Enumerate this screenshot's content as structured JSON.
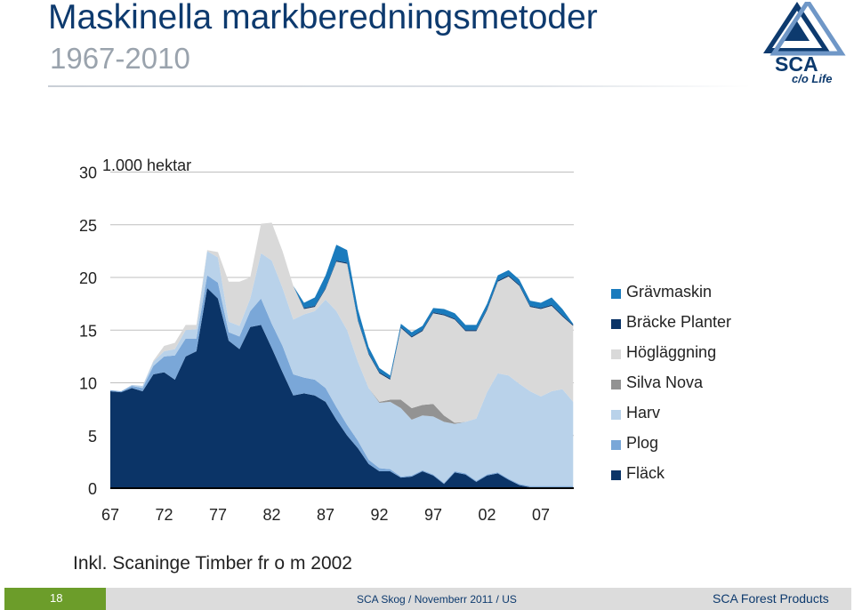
{
  "slide": {
    "title": "Maskinella markberedningsmetoder",
    "subtitle": "1967-2010",
    "logo_text": "SCA",
    "logo_tagline": "c/o Life",
    "note": "Inkl. Scaninge Timber fr o m 2002"
  },
  "footer": {
    "page_number": "18",
    "center_text": "SCA Skog / Novemberr 2011 / US",
    "right_text": "SCA Forest Products"
  },
  "colors": {
    "title": "#0d3a6e",
    "Grävmaskin": "#1a7bbd",
    "Bräcke Planter": "#0b3467",
    "Högläggning": "#d9d9d9",
    "Silva Nova": "#939393",
    "Harv": "#b9d2ea",
    "Plog": "#7aa7d8",
    "Fläck": "#0b3467",
    "footer_accent": "#6c9d2a"
  },
  "chart_data": {
    "type": "area",
    "stacked": true,
    "title": "",
    "ylabel": "1.000 hektar",
    "xlabel": "",
    "ylim": [
      0,
      30
    ],
    "yticks": [
      0,
      5,
      10,
      15,
      20,
      25,
      30
    ],
    "x": [
      1967,
      1968,
      1969,
      1970,
      1971,
      1972,
      1973,
      1974,
      1975,
      1976,
      1977,
      1978,
      1979,
      1980,
      1981,
      1982,
      1983,
      1984,
      1985,
      1986,
      1987,
      1988,
      1989,
      1990,
      1991,
      1992,
      1993,
      1994,
      1995,
      1996,
      1997,
      1998,
      1999,
      2000,
      2001,
      2002,
      2003,
      2004,
      2005,
      2006,
      2007,
      2008,
      2009,
      2010
    ],
    "xtick_labels": [
      "67",
      "72",
      "77",
      "82",
      "87",
      "92",
      "97",
      "02",
      "07"
    ],
    "xtick_years": [
      1967,
      1972,
      1977,
      1982,
      1987,
      1992,
      1997,
      2002,
      2007
    ],
    "legend_position": "right",
    "series": [
      {
        "name": "Fläck",
        "values": [
          9.2,
          9.1,
          9.5,
          9.2,
          10.8,
          11.0,
          10.3,
          12.5,
          13.0,
          19.0,
          18.0,
          14.0,
          13.2,
          15.3,
          15.5,
          13.3,
          11.0,
          8.8,
          9.0,
          8.8,
          8.2,
          6.5,
          5.0,
          3.8,
          2.3,
          1.6,
          1.6,
          1.0,
          1.1,
          1.6,
          1.2,
          0.4,
          1.5,
          1.3,
          0.6,
          1.2,
          1.4,
          0.8,
          0.3,
          0.1,
          0.1,
          0.1,
          0.1,
          0.1
        ]
      },
      {
        "name": "Plog",
        "values": [
          0.1,
          0.1,
          0.2,
          0.3,
          0.8,
          1.5,
          2.3,
          1.7,
          1.2,
          1.2,
          1.5,
          0.8,
          1.2,
          1.5,
          2.5,
          2.3,
          2.5,
          2.0,
          1.5,
          1.5,
          1.3,
          1.2,
          1.0,
          0.7,
          0.4,
          0.3,
          0.2,
          0.1,
          0.1,
          0.1,
          0.1,
          0.1,
          0.1,
          0.1,
          0.1,
          0.1,
          0.1,
          0.1,
          0.1,
          0.1,
          0.1,
          0.1,
          0.1,
          0.1
        ]
      },
      {
        "name": "Harv",
        "values": [
          0.0,
          0.0,
          0.1,
          0.2,
          0.4,
          0.5,
          0.6,
          0.8,
          0.9,
          2.3,
          2.4,
          1.0,
          1.0,
          1.2,
          4.3,
          6.0,
          5.5,
          5.2,
          6.0,
          6.5,
          8.4,
          9.1,
          9.0,
          7.5,
          6.8,
          6.2,
          6.4,
          6.5,
          5.3,
          5.2,
          5.5,
          5.8,
          4.5,
          4.9,
          5.9,
          7.8,
          9.4,
          9.8,
          9.5,
          9.0,
          8.5,
          9.0,
          9.2,
          8.0
        ]
      },
      {
        "name": "Silva Nova",
        "values": [
          0,
          0,
          0,
          0,
          0,
          0,
          0,
          0,
          0,
          0,
          0,
          0,
          0,
          0,
          0,
          0,
          0,
          0,
          0,
          0,
          0,
          0,
          0,
          0,
          0,
          0.1,
          0.2,
          0.8,
          1.1,
          1.0,
          1.2,
          0.6,
          0.1,
          0,
          0,
          0,
          0,
          0,
          0,
          0,
          0,
          0,
          0,
          0
        ]
      },
      {
        "name": "Högläggning",
        "values": [
          0.0,
          0.0,
          0.0,
          0.0,
          0.1,
          0.5,
          0.6,
          0.5,
          0.4,
          0.1,
          0.5,
          3.8,
          4.2,
          2.0,
          2.8,
          3.6,
          3.5,
          3.2,
          0.5,
          0.4,
          1.0,
          4.7,
          6.3,
          3.9,
          3.2,
          2.7,
          1.9,
          6.8,
          6.7,
          7.0,
          8.6,
          9.5,
          9.8,
          8.6,
          8.3,
          7.8,
          8.7,
          9.4,
          9.3,
          8.0,
          8.3,
          8.1,
          6.9,
          7.2
        ]
      },
      {
        "name": "Bräcke Planter",
        "values": [
          0,
          0,
          0,
          0,
          0,
          0,
          0,
          0,
          0,
          0,
          0,
          0,
          0,
          0,
          0,
          0,
          0,
          0,
          0.1,
          0.1,
          0.1,
          0.1,
          0.1,
          0.1,
          0.1,
          0.1,
          0.1,
          0.1,
          0.1,
          0.1,
          0.1,
          0.1,
          0.1,
          0.1,
          0.1,
          0.1,
          0.1,
          0.1,
          0.1,
          0.1,
          0.1,
          0.1,
          0.1,
          0.1
        ]
      },
      {
        "name": "Grävmaskin",
        "values": [
          0,
          0,
          0,
          0,
          0,
          0,
          0,
          0,
          0,
          0,
          0,
          0,
          0,
          0,
          0,
          0,
          0,
          0,
          0.5,
          0.8,
          1.2,
          1.5,
          1.2,
          1.0,
          0.6,
          0.4,
          0.3,
          0.3,
          0.4,
          0.4,
          0.4,
          0.5,
          0.5,
          0.5,
          0.5,
          0.5,
          0.5,
          0.5,
          0.5,
          0.5,
          0.5,
          0.7,
          0.6,
          0.1
        ]
      }
    ],
    "legend_order": [
      "Grävmaskin",
      "Bräcke Planter",
      "Högläggning",
      "Silva Nova",
      "Harv",
      "Plog",
      "Fläck"
    ]
  }
}
